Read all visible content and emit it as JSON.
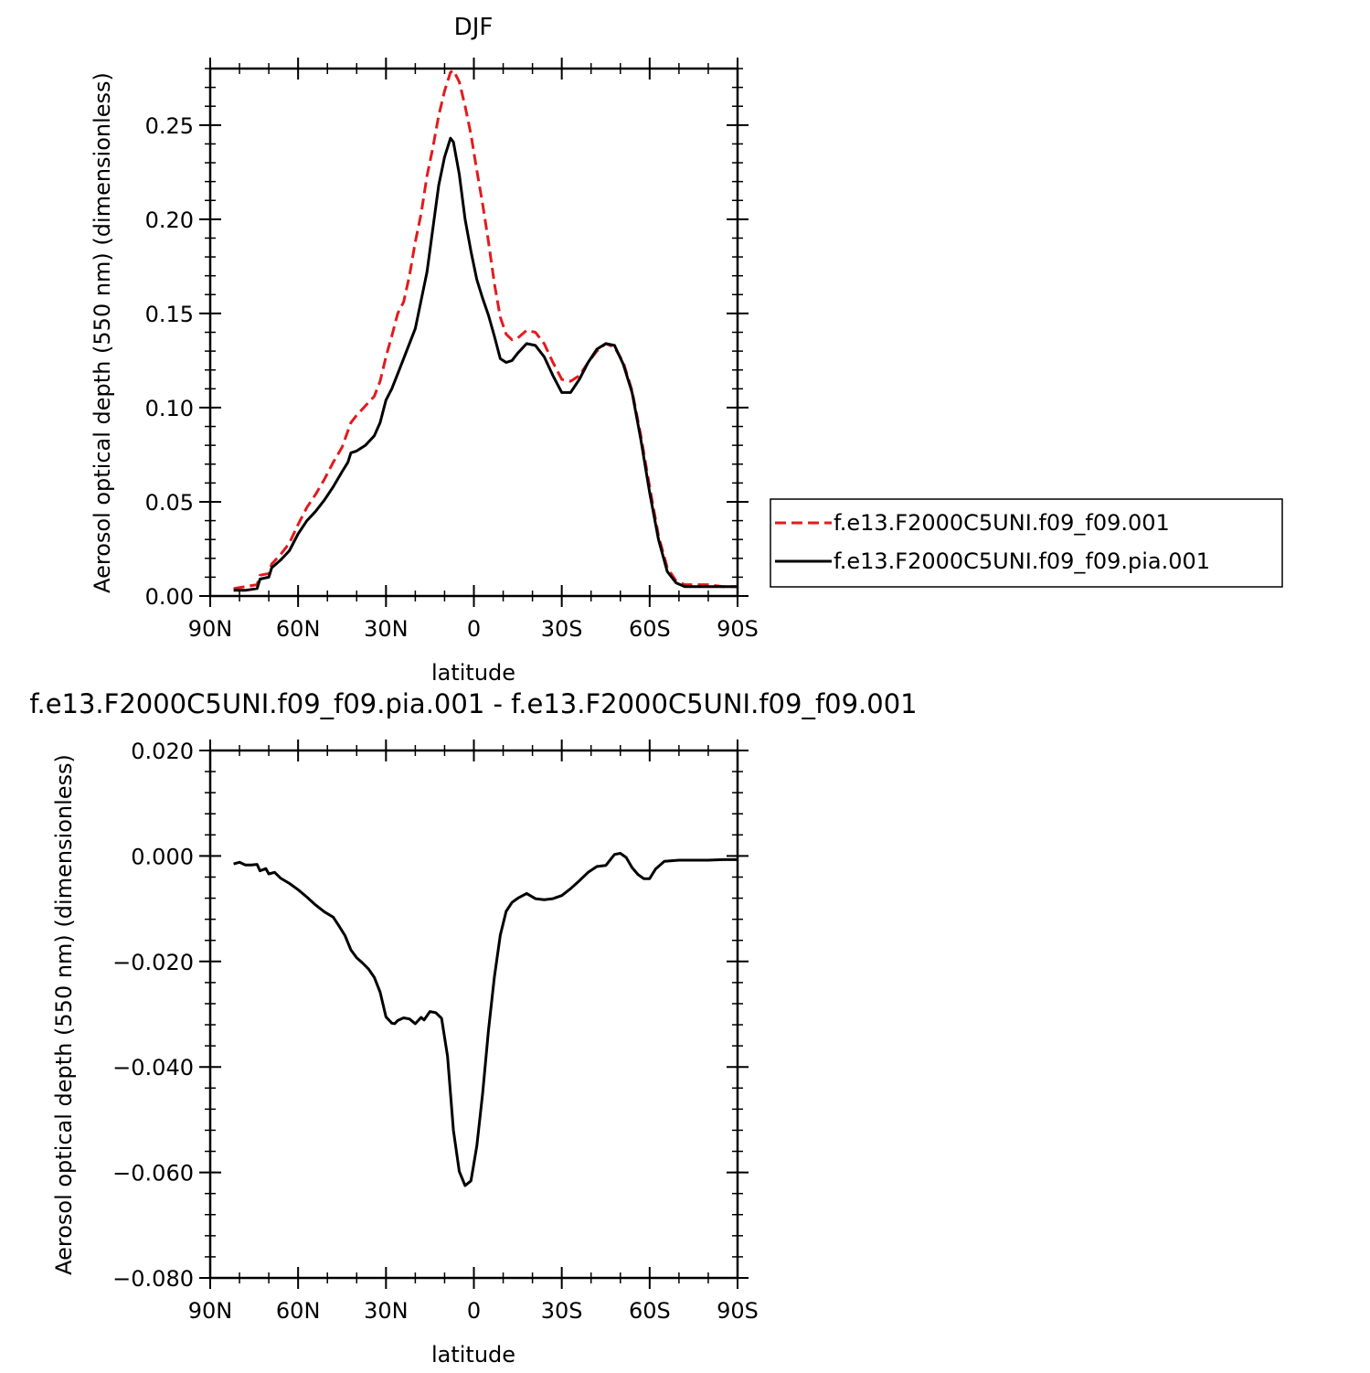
{
  "chart_data": [
    {
      "type": "line",
      "title": "DJF",
      "xlabel": "latitude",
      "ylabel": "Aerosol optical depth (550 nm) (dimensionless)",
      "xlim": [
        -90,
        90
      ],
      "ylim": [
        0,
        0.28
      ],
      "x_ticks": [
        -90,
        -60,
        -30,
        0,
        30,
        60,
        90
      ],
      "x_tick_labels": [
        "90N",
        "60N",
        "30N",
        "0",
        "30S",
        "60S",
        "90S"
      ],
      "y_ticks": [
        0,
        0.05,
        0.1,
        0.15,
        0.2,
        0.25
      ],
      "y_tick_labels": [
        "0.00",
        "0.05",
        "0.10",
        "0.15",
        "0.20",
        "0.25"
      ],
      "grid": false,
      "legend_position": "right",
      "series": [
        {
          "name": "f.e13.F2000C5UNI.f09_f09.001",
          "color": "#e41a1c",
          "dash": "dashed",
          "x": [
            -82,
            -78,
            -74,
            -73,
            -70,
            -69,
            -66,
            -63,
            -60,
            -57,
            -54,
            -51,
            -48,
            -45,
            -42,
            -40,
            -37,
            -34,
            -32,
            -30,
            -28,
            -26,
            -24,
            -22,
            -20,
            -18,
            -16,
            -14,
            -12,
            -10,
            -8,
            -7,
            -5,
            -3,
            -1,
            1,
            3,
            5,
            7,
            9,
            11,
            13,
            15,
            18,
            21,
            24,
            27,
            30,
            33,
            36,
            39,
            42,
            45,
            48,
            51,
            54,
            57,
            60,
            63,
            66,
            69,
            72,
            75,
            80,
            85,
            90
          ],
          "y": [
            0.004,
            0.005,
            0.006,
            0.011,
            0.012,
            0.017,
            0.022,
            0.028,
            0.038,
            0.047,
            0.054,
            0.062,
            0.071,
            0.079,
            0.092,
            0.096,
            0.101,
            0.106,
            0.114,
            0.127,
            0.138,
            0.15,
            0.156,
            0.17,
            0.188,
            0.203,
            0.223,
            0.238,
            0.255,
            0.268,
            0.278,
            0.279,
            0.273,
            0.26,
            0.245,
            0.226,
            0.208,
            0.188,
            0.166,
            0.148,
            0.139,
            0.136,
            0.137,
            0.141,
            0.14,
            0.134,
            0.124,
            0.115,
            0.114,
            0.117,
            0.124,
            0.13,
            0.134,
            0.132,
            0.124,
            0.109,
            0.085,
            0.058,
            0.032,
            0.015,
            0.008,
            0.006,
            0.006,
            0.006,
            0.005,
            0.005
          ]
        },
        {
          "name": "f.e13.F2000C5UNI.f09_f09.pia.001",
          "color": "#000000",
          "dash": "solid",
          "x": [
            -82,
            -78,
            -74,
            -73,
            -70,
            -69,
            -66,
            -63,
            -60,
            -57,
            -54,
            -51,
            -48,
            -45,
            -43,
            -42,
            -40,
            -37,
            -34,
            -32,
            -30,
            -28,
            -26,
            -24,
            -22,
            -20,
            -18,
            -16,
            -14,
            -12,
            -10,
            -8,
            -7,
            -5,
            -3,
            -1,
            1,
            3,
            5,
            7,
            9,
            11,
            13,
            15,
            18,
            21,
            24,
            27,
            30,
            33,
            36,
            39,
            42,
            45,
            48,
            51,
            54,
            57,
            60,
            63,
            66,
            69,
            72,
            75,
            80,
            85,
            90
          ],
          "y": [
            0.003,
            0.003,
            0.004,
            0.009,
            0.01,
            0.015,
            0.019,
            0.024,
            0.033,
            0.04,
            0.045,
            0.051,
            0.058,
            0.066,
            0.071,
            0.076,
            0.077,
            0.08,
            0.085,
            0.092,
            0.104,
            0.11,
            0.118,
            0.126,
            0.134,
            0.142,
            0.157,
            0.172,
            0.195,
            0.218,
            0.233,
            0.243,
            0.241,
            0.224,
            0.2,
            0.183,
            0.168,
            0.158,
            0.149,
            0.138,
            0.126,
            0.124,
            0.125,
            0.129,
            0.134,
            0.133,
            0.127,
            0.117,
            0.108,
            0.108,
            0.115,
            0.124,
            0.131,
            0.134,
            0.133,
            0.123,
            0.108,
            0.083,
            0.055,
            0.03,
            0.013,
            0.007,
            0.005,
            0.005,
            0.005,
            0.005,
            0.005
          ]
        }
      ]
    },
    {
      "type": "line",
      "title": "f.e13.F2000C5UNI.f09_f09.pia.001 - f.e13.F2000C5UNI.f09_f09.001",
      "xlabel": "latitude",
      "ylabel": "Aerosol optical depth (550 nm) (dimensionless)",
      "xlim": [
        -90,
        90
      ],
      "ylim": [
        -0.08,
        0.02
      ],
      "x_ticks": [
        -90,
        -60,
        -30,
        0,
        30,
        60,
        90
      ],
      "x_tick_labels": [
        "90N",
        "60N",
        "30N",
        "0",
        "30S",
        "60S",
        "90S"
      ],
      "y_ticks": [
        0.02,
        0.0,
        -0.02,
        -0.04,
        -0.06,
        -0.08
      ],
      "y_tick_labels": [
        "0.020",
        "0.000",
        "−0.020",
        "−0.040",
        "−0.060",
        "−0.080"
      ],
      "grid": false,
      "series": [
        {
          "color": "#000000",
          "dash": "solid",
          "x": [
            -82,
            -80,
            -78,
            -76,
            -74,
            -73,
            -71,
            -70,
            -68,
            -66,
            -63,
            -60,
            -57,
            -54,
            -51,
            -48,
            -46,
            -44,
            -42,
            -40,
            -38,
            -36,
            -34,
            -32,
            -30,
            -28,
            -27,
            -26,
            -24,
            -22,
            -20,
            -18,
            -17,
            -15,
            -13,
            -11,
            -9,
            -7,
            -5,
            -3,
            -1,
            1,
            3,
            5,
            7,
            9,
            11,
            13,
            15,
            18,
            21,
            24,
            27,
            30,
            33,
            36,
            39,
            42,
            45,
            48,
            50,
            52,
            54,
            56,
            58,
            60,
            62,
            65,
            70,
            75,
            80,
            85,
            90
          ],
          "y": [
            -0.0015,
            -0.0012,
            -0.0017,
            -0.0017,
            -0.0016,
            -0.0028,
            -0.0024,
            -0.0034,
            -0.0031,
            -0.0042,
            -0.0052,
            -0.0064,
            -0.0078,
            -0.0093,
            -0.0106,
            -0.0116,
            -0.0133,
            -0.0151,
            -0.0178,
            -0.0193,
            -0.0203,
            -0.0214,
            -0.023,
            -0.0258,
            -0.0305,
            -0.0317,
            -0.0318,
            -0.0312,
            -0.0307,
            -0.0309,
            -0.0318,
            -0.0306,
            -0.0311,
            -0.0295,
            -0.0297,
            -0.0308,
            -0.038,
            -0.052,
            -0.0598,
            -0.0625,
            -0.0616,
            -0.055,
            -0.045,
            -0.033,
            -0.023,
            -0.015,
            -0.0105,
            -0.0088,
            -0.008,
            -0.0071,
            -0.0081,
            -0.0083,
            -0.0081,
            -0.0075,
            -0.0062,
            -0.0047,
            -0.0031,
            -0.002,
            -0.0018,
            0.0003,
            0.0005,
            -0.0003,
            -0.0022,
            -0.0035,
            -0.0043,
            -0.0043,
            -0.0025,
            -0.001,
            -0.0008,
            -0.0008,
            -0.0008,
            -0.0007,
            -0.0007
          ]
        }
      ]
    }
  ]
}
